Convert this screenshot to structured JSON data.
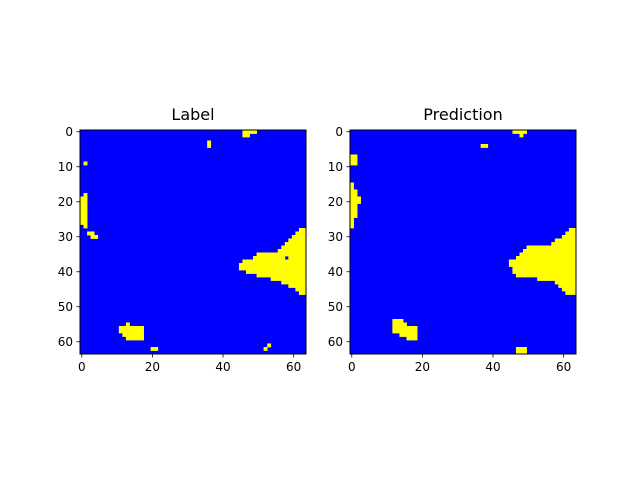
{
  "figure": {
    "background": "#ffffff",
    "colors": {
      "class0": "#0000ff",
      "class1": "#ffff00"
    }
  },
  "chart_data": [
    {
      "type": "heatmap",
      "title": "Label",
      "grid_size": [
        64,
        64
      ],
      "xlim": [
        -0.5,
        63.5
      ],
      "ylim": [
        63.5,
        -0.5
      ],
      "xticks": [
        0,
        20,
        40,
        60
      ],
      "yticks": [
        0,
        10,
        20,
        30,
        40,
        50,
        60
      ],
      "grid": false,
      "background_value": 0,
      "foreground_value": 1,
      "foreground_cells": [
        {
          "r": [
            0,
            1
          ],
          "c": [
            46,
            47
          ]
        },
        {
          "r": [
            0,
            0
          ],
          "c": [
            48,
            49
          ]
        },
        {
          "r": [
            3,
            4
          ],
          "c": [
            36,
            36
          ]
        },
        {
          "r": [
            9,
            9
          ],
          "c": [
            1,
            1
          ]
        },
        {
          "r": [
            18,
            26
          ],
          "c": [
            1,
            1
          ]
        },
        {
          "r": [
            19,
            26
          ],
          "c": [
            0,
            0
          ]
        },
        {
          "r": [
            27,
            27
          ],
          "c": [
            1,
            1
          ]
        },
        {
          "r": [
            29,
            29
          ],
          "c": [
            2,
            3
          ]
        },
        {
          "r": [
            30,
            30
          ],
          "c": [
            3,
            4
          ]
        },
        {
          "r": [
            28,
            28
          ],
          "c": [
            62,
            63
          ]
        },
        {
          "r": [
            29,
            29
          ],
          "c": [
            61,
            63
          ]
        },
        {
          "r": [
            30,
            30
          ],
          "c": [
            60,
            63
          ]
        },
        {
          "r": [
            31,
            31
          ],
          "c": [
            59,
            63
          ]
        },
        {
          "r": [
            32,
            32
          ],
          "c": [
            58,
            63
          ]
        },
        {
          "r": [
            33,
            33
          ],
          "c": [
            57,
            63
          ]
        },
        {
          "r": [
            34,
            34
          ],
          "c": [
            56,
            63
          ]
        },
        {
          "r": [
            35,
            35
          ],
          "c": [
            50,
            63
          ]
        },
        {
          "r": [
            36,
            36
          ],
          "c": [
            49,
            63
          ]
        },
        {
          "r": [
            37,
            37
          ],
          "c": [
            46,
            63
          ]
        },
        {
          "r": [
            38,
            38
          ],
          "c": [
            45,
            63
          ]
        },
        {
          "r": [
            39,
            39
          ],
          "c": [
            45,
            63
          ]
        },
        {
          "r": [
            40,
            40
          ],
          "c": [
            47,
            63
          ]
        },
        {
          "r": [
            41,
            41
          ],
          "c": [
            50,
            63
          ]
        },
        {
          "r": [
            42,
            42
          ],
          "c": [
            54,
            63
          ]
        },
        {
          "r": [
            43,
            43
          ],
          "c": [
            57,
            63
          ]
        },
        {
          "r": [
            44,
            44
          ],
          "c": [
            59,
            63
          ]
        },
        {
          "r": [
            45,
            45
          ],
          "c": [
            61,
            63
          ]
        },
        {
          "r": [
            46,
            46
          ],
          "c": [
            62,
            63
          ]
        },
        {
          "r": [
            55,
            55
          ],
          "c": [
            13,
            13
          ]
        },
        {
          "r": [
            56,
            56
          ],
          "c": [
            11,
            17
          ]
        },
        {
          "r": [
            57,
            57
          ],
          "c": [
            11,
            17
          ]
        },
        {
          "r": [
            58,
            58
          ],
          "c": [
            12,
            17
          ]
        },
        {
          "r": [
            59,
            59
          ],
          "c": [
            13,
            17
          ]
        },
        {
          "r": [
            62,
            62
          ],
          "c": [
            20,
            21
          ]
        },
        {
          "r": [
            61,
            61
          ],
          "c": [
            53,
            53
          ]
        },
        {
          "r": [
            62,
            62
          ],
          "c": [
            52,
            52
          ]
        }
      ],
      "background_cells": [
        {
          "r": [
            36,
            36
          ],
          "c": [
            58,
            58
          ]
        }
      ]
    },
    {
      "type": "heatmap",
      "title": "Prediction",
      "grid_size": [
        64,
        64
      ],
      "xlim": [
        -0.5,
        63.5
      ],
      "ylim": [
        63.5,
        -0.5
      ],
      "xticks": [
        0,
        20,
        40,
        60
      ],
      "yticks": [
        0,
        10,
        20,
        30,
        40,
        50,
        60
      ],
      "grid": false,
      "background_value": 0,
      "foreground_value": 1,
      "foreground_cells": [
        {
          "r": [
            0,
            0
          ],
          "c": [
            46,
            49
          ]
        },
        {
          "r": [
            1,
            1
          ],
          "c": [
            48,
            48
          ]
        },
        {
          "r": [
            4,
            4
          ],
          "c": [
            37,
            38
          ]
        },
        {
          "r": [
            7,
            9
          ],
          "c": [
            0,
            1
          ]
        },
        {
          "r": [
            15,
            27
          ],
          "c": [
            0,
            0
          ]
        },
        {
          "r": [
            17,
            24
          ],
          "c": [
            1,
            1
          ]
        },
        {
          "r": [
            19,
            20
          ],
          "c": [
            2,
            2
          ]
        },
        {
          "r": [
            28,
            28
          ],
          "c": [
            62,
            63
          ]
        },
        {
          "r": [
            29,
            29
          ],
          "c": [
            61,
            63
          ]
        },
        {
          "r": [
            30,
            30
          ],
          "c": [
            60,
            63
          ]
        },
        {
          "r": [
            31,
            31
          ],
          "c": [
            58,
            63
          ]
        },
        {
          "r": [
            32,
            32
          ],
          "c": [
            57,
            63
          ]
        },
        {
          "r": [
            33,
            33
          ],
          "c": [
            50,
            63
          ]
        },
        {
          "r": [
            34,
            34
          ],
          "c": [
            49,
            63
          ]
        },
        {
          "r": [
            35,
            35
          ],
          "c": [
            48,
            63
          ]
        },
        {
          "r": [
            36,
            36
          ],
          "c": [
            47,
            63
          ]
        },
        {
          "r": [
            37,
            37
          ],
          "c": [
            45,
            63
          ]
        },
        {
          "r": [
            38,
            38
          ],
          "c": [
            45,
            63
          ]
        },
        {
          "r": [
            39,
            39
          ],
          "c": [
            46,
            63
          ]
        },
        {
          "r": [
            40,
            40
          ],
          "c": [
            46,
            63
          ]
        },
        {
          "r": [
            41,
            41
          ],
          "c": [
            47,
            63
          ]
        },
        {
          "r": [
            42,
            42
          ],
          "c": [
            53,
            63
          ]
        },
        {
          "r": [
            43,
            43
          ],
          "c": [
            58,
            63
          ]
        },
        {
          "r": [
            44,
            44
          ],
          "c": [
            59,
            63
          ]
        },
        {
          "r": [
            45,
            45
          ],
          "c": [
            60,
            63
          ]
        },
        {
          "r": [
            46,
            46
          ],
          "c": [
            61,
            63
          ]
        },
        {
          "r": [
            54,
            54
          ],
          "c": [
            12,
            14
          ]
        },
        {
          "r": [
            55,
            55
          ],
          "c": [
            12,
            15
          ]
        },
        {
          "r": [
            56,
            56
          ],
          "c": [
            12,
            18
          ]
        },
        {
          "r": [
            57,
            57
          ],
          "c": [
            12,
            18
          ]
        },
        {
          "r": [
            58,
            58
          ],
          "c": [
            14,
            18
          ]
        },
        {
          "r": [
            59,
            59
          ],
          "c": [
            16,
            18
          ]
        },
        {
          "r": [
            62,
            63
          ],
          "c": [
            47,
            49
          ]
        }
      ],
      "background_cells": []
    }
  ]
}
